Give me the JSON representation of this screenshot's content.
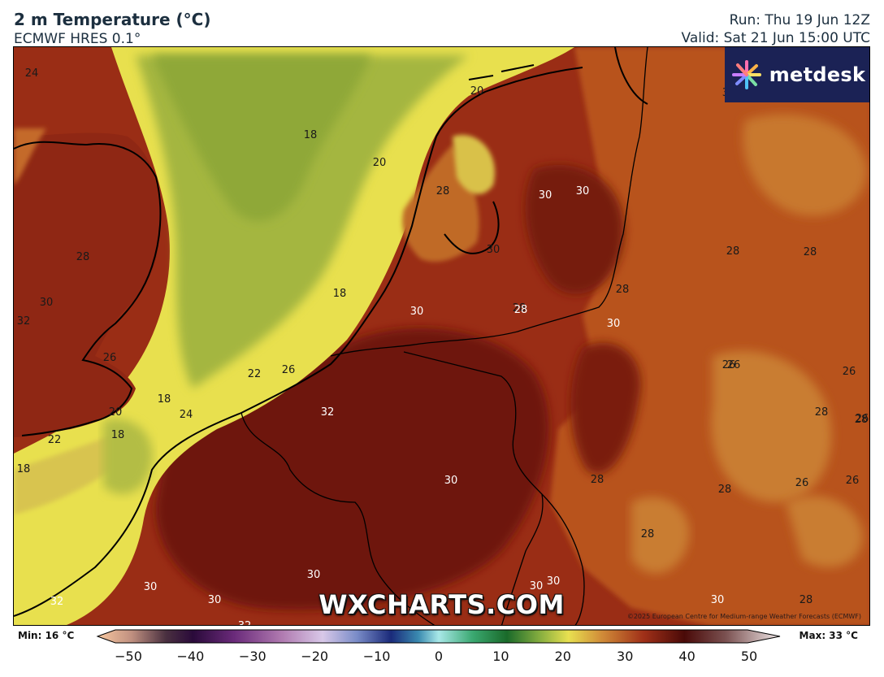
{
  "header": {
    "title": "2 m Temperature (°C)",
    "model": "ECMWF HRES 0.1°",
    "run": "Run: Thu 19 Jun 12Z",
    "valid": "Valid: Sat 21 Jun 15:00 UTC"
  },
  "logo": {
    "text": "metdesk",
    "icon": "flower-burst-icon"
  },
  "watermark": "WXCHARTS.COM",
  "copyright": "©2025 European Centre for Medium-range Weather Forecasts (ECMWF)",
  "legend": {
    "min_label": "Min: 16 °C",
    "max_label": "Max: 33 °C",
    "ticks": [
      "−50",
      "−40",
      "−30",
      "−20",
      "−10",
      "0",
      "10",
      "20",
      "30",
      "40",
      "50"
    ]
  },
  "map": {
    "variable": "2 m temperature",
    "unit": "°C",
    "colors": {
      "t18": "#98b03c",
      "t20": "#e6e24c",
      "t22": "#d9c650",
      "t24": "#c68a38",
      "t26": "#c97a2e",
      "t28": "#b4501f",
      "t30": "#8f2613",
      "t32": "#6d1409"
    },
    "contour_labels": [
      {
        "text": "24"
      },
      {
        "text": "18"
      },
      {
        "text": "20"
      },
      {
        "text": "20"
      },
      {
        "text": "28"
      },
      {
        "text": "30"
      },
      {
        "text": "30"
      },
      {
        "text": "30"
      },
      {
        "text": "28"
      },
      {
        "text": "30"
      },
      {
        "text": "32"
      },
      {
        "text": "26"
      },
      {
        "text": "18"
      },
      {
        "text": "20"
      },
      {
        "text": "18"
      },
      {
        "text": "22"
      },
      {
        "text": "18"
      },
      {
        "text": "22"
      },
      {
        "text": "26"
      },
      {
        "text": "18"
      },
      {
        "text": "24"
      },
      {
        "text": "32"
      },
      {
        "text": "30"
      },
      {
        "text": "28"
      },
      {
        "text": "28"
      },
      {
        "text": "28"
      },
      {
        "text": "28"
      },
      {
        "text": "30"
      },
      {
        "text": "26"
      },
      {
        "text": "28"
      },
      {
        "text": "26"
      },
      {
        "text": "26"
      },
      {
        "text": "28"
      },
      {
        "text": "26"
      },
      {
        "text": "26"
      },
      {
        "text": "28"
      },
      {
        "text": "28"
      },
      {
        "text": "28"
      },
      {
        "text": "30"
      },
      {
        "text": "30"
      },
      {
        "text": "30"
      },
      {
        "text": "30"
      },
      {
        "text": "32"
      },
      {
        "text": "30"
      },
      {
        "text": "32"
      },
      {
        "text": "30"
      },
      {
        "text": "30"
      },
      {
        "text": "28"
      },
      {
        "text": "30"
      },
      {
        "text": "26"
      },
      {
        "text": "28"
      }
    ]
  }
}
